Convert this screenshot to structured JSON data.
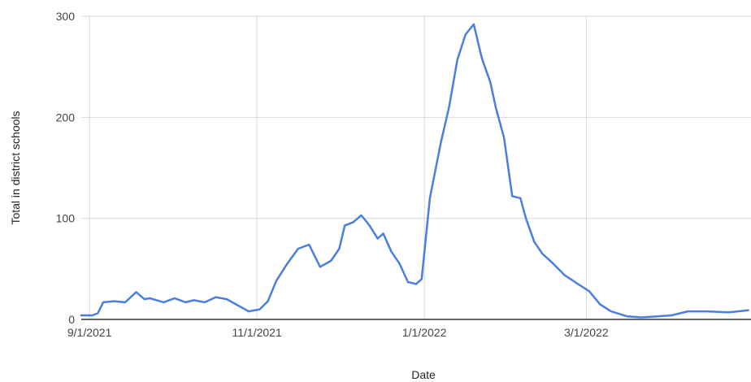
{
  "chart_data": {
    "type": "line",
    "title": "",
    "xlabel": "Date",
    "ylabel": "Total in district schools",
    "x_tick_labels": [
      "9/1/2021",
      "11/1/2021",
      "1/1/2022",
      "3/1/2022"
    ],
    "y_tick_labels": [
      "0",
      "100",
      "200",
      "300"
    ],
    "ylim": [
      0,
      300
    ],
    "xlim": [
      "2021-08-29",
      "2022-04-30"
    ],
    "grid": true,
    "legend": "none",
    "colors": {
      "line": "#4a7fe0",
      "grid": "#d9d9d9",
      "baseline": "#333333"
    },
    "series": [
      {
        "x": [
          "2021-08-29",
          "2021-09-02",
          "2021-09-04",
          "2021-09-06",
          "2021-09-10",
          "2021-09-14",
          "2021-09-18",
          "2021-09-21",
          "2021-09-23",
          "2021-09-28",
          "2021-10-02",
          "2021-10-06",
          "2021-10-09",
          "2021-10-13",
          "2021-10-17",
          "2021-10-21",
          "2021-10-25",
          "2021-10-29",
          "2021-11-02",
          "2021-11-05",
          "2021-11-08",
          "2021-11-12",
          "2021-11-16",
          "2021-11-20",
          "2021-11-24",
          "2021-11-28",
          "2021-12-01",
          "2021-12-03",
          "2021-12-06",
          "2021-12-09",
          "2021-12-12",
          "2021-12-15",
          "2021-12-17",
          "2021-12-20",
          "2021-12-23",
          "2021-12-26",
          "2021-12-29",
          "2021-12-31",
          "2022-01-03",
          "2022-01-07",
          "2022-01-10",
          "2022-01-13",
          "2022-01-16",
          "2022-01-19",
          "2022-01-22",
          "2022-01-25",
          "2022-01-27",
          "2022-01-30",
          "2022-02-02",
          "2022-02-05",
          "2022-02-07",
          "2022-02-10",
          "2022-02-13",
          "2022-02-17",
          "2022-02-21",
          "2022-02-26",
          "2022-03-02",
          "2022-03-06",
          "2022-03-10",
          "2022-03-16",
          "2022-03-21",
          "2022-03-27",
          "2022-04-01",
          "2022-04-07",
          "2022-04-14",
          "2022-04-22",
          "2022-04-29"
        ],
        "values": [
          4,
          4,
          6,
          17,
          18,
          17,
          27,
          20,
          21,
          17,
          21,
          17,
          19,
          17,
          22,
          20,
          14,
          8,
          10,
          18,
          38,
          55,
          70,
          74,
          52,
          58,
          70,
          93,
          96,
          103,
          93,
          80,
          85,
          67,
          55,
          37,
          35,
          40,
          120,
          175,
          210,
          257,
          282,
          292,
          258,
          235,
          210,
          180,
          122,
          120,
          100,
          77,
          65,
          55,
          44,
          35,
          28,
          15,
          8,
          3,
          2,
          3,
          4,
          8,
          8,
          7,
          9
        ]
      }
    ]
  }
}
